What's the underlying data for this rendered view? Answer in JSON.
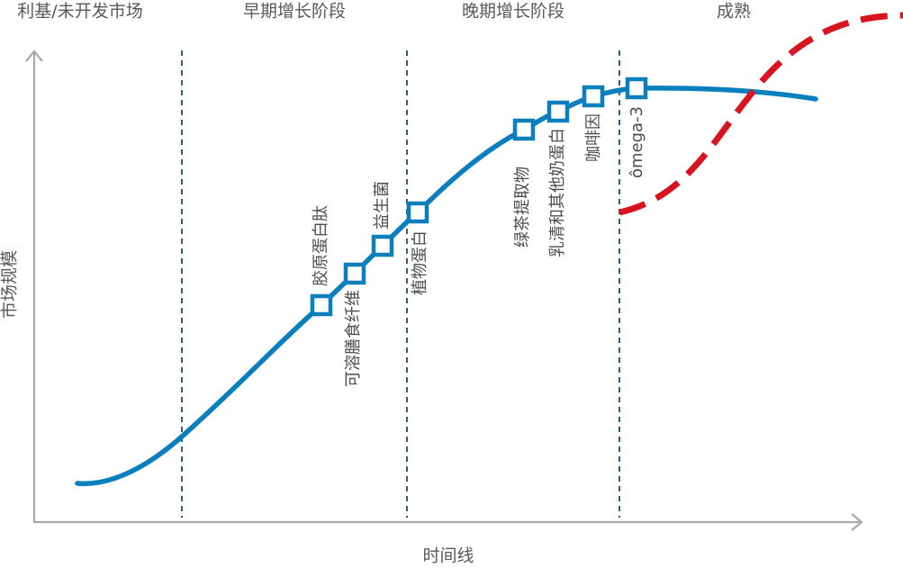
{
  "stages": [
    {
      "id": "stage-niche",
      "label": "利基/未开发市场"
    },
    {
      "id": "stage-early",
      "label": "早期增长阶段"
    },
    {
      "id": "stage-late",
      "label": "晚期增长阶段"
    },
    {
      "id": "stage-mature",
      "label": "成熟"
    }
  ],
  "axes": {
    "x_label": "时间线",
    "y_label": "市场规模"
  },
  "markers": [
    {
      "id": "collagen",
      "label": "胶原蛋白肽"
    },
    {
      "id": "soluble-fiber",
      "label": "可溶膳食纤维"
    },
    {
      "id": "probiotics",
      "label": "益生菌"
    },
    {
      "id": "plant-protein",
      "label": "植物蛋白"
    },
    {
      "id": "green-tea",
      "label": "绿茶提取物"
    },
    {
      "id": "whey",
      "label": "乳清和其他奶蛋白"
    },
    {
      "id": "caffeine",
      "label": "咖啡因"
    },
    {
      "id": "omega3",
      "label": "ômega-3"
    }
  ],
  "colors": {
    "curve": "#0a7fbe",
    "disruption": "#d7141f",
    "divider": "#1b4a72",
    "axis": "#a7a9ac",
    "text": "#58595b"
  }
}
